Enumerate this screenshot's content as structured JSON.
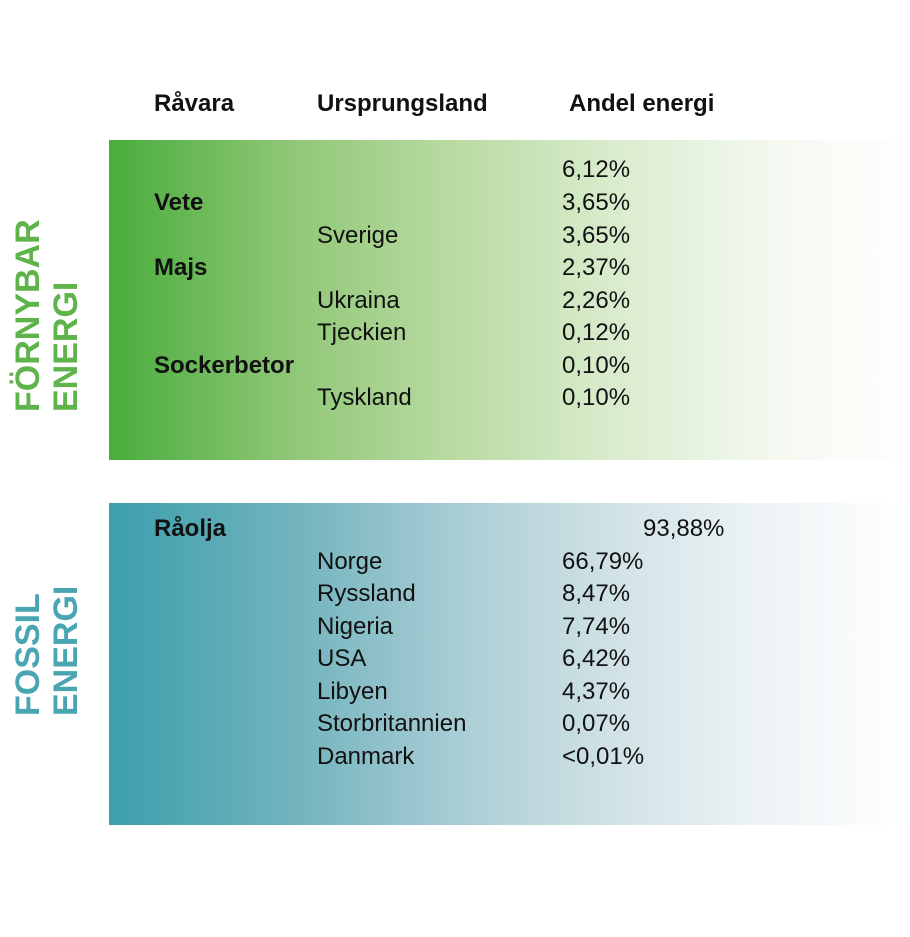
{
  "headers": {
    "raw_material": "Råvara",
    "origin_country": "Ursprungsland",
    "energy_share": "Andel energi"
  },
  "renewable": {
    "label_line1": "FÖRNYBAR",
    "label_line2": "ENERGI",
    "color": "#5fb34b",
    "total": "6,12%",
    "rows": [
      {
        "category": "Vete",
        "share": "3,65%"
      },
      {
        "country": "Sverige",
        "share": "3,65%"
      },
      {
        "category": "Majs",
        "share": "2,37%"
      },
      {
        "country": "Ukraina",
        "share": "2,26%"
      },
      {
        "country": "Tjeckien",
        "share": "0,12%"
      },
      {
        "category": "Sockerbetor",
        "share": "0,10%"
      },
      {
        "country": "Tyskland",
        "share": "0,10%"
      }
    ]
  },
  "fossil": {
    "label_line1": "FOSSIL",
    "label_line2": "ENERGI",
    "color": "#4aa5b3",
    "category": "Råolja",
    "total": "93,88%",
    "rows": [
      {
        "country": "Norge",
        "share": "66,79%"
      },
      {
        "country": "Ryssland",
        "share": "8,47%"
      },
      {
        "country": "Nigeria",
        "share": "7,74%"
      },
      {
        "country": "USA",
        "share": "6,42%"
      },
      {
        "country": "Libyen",
        "share": "4,37%"
      },
      {
        "country": "Storbritannien",
        "share": "0,07%"
      },
      {
        "country": "Danmark",
        "share": "<0,01%"
      }
    ]
  }
}
